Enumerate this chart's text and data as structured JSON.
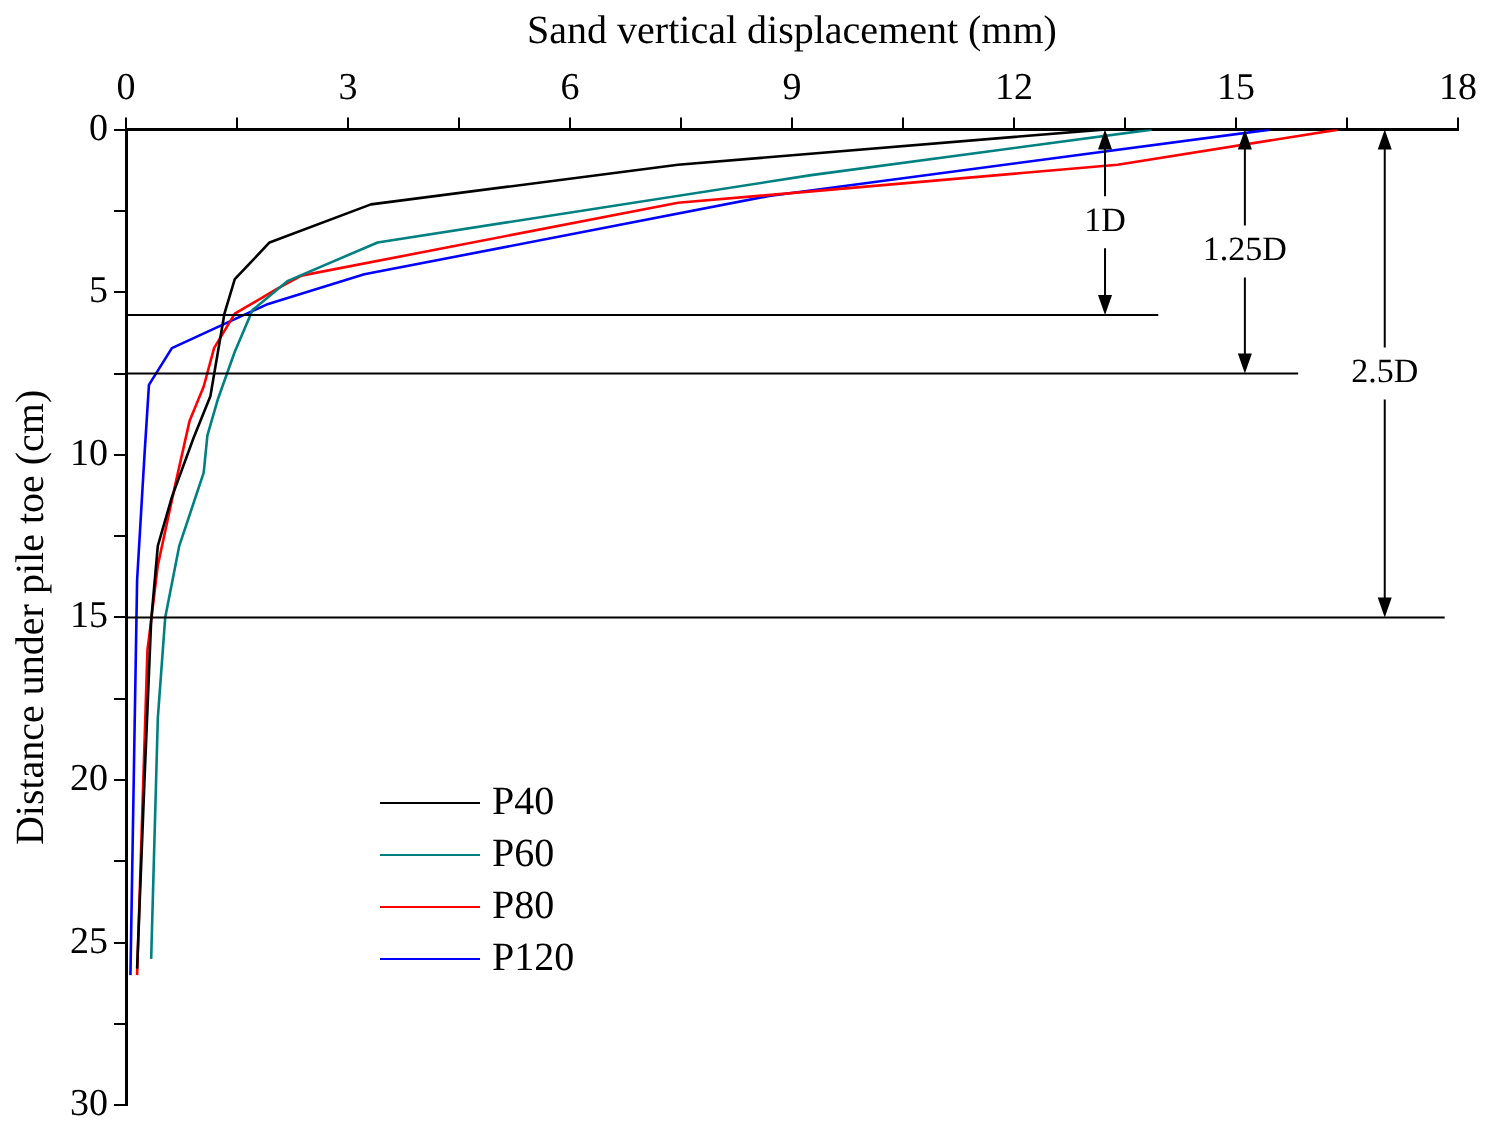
{
  "chart_data": {
    "type": "line",
    "xlabel": "Sand vertical displacement (mm)",
    "ylabel": "Distance under pile toe (cm)",
    "xlim": [
      0,
      18
    ],
    "ylim": [
      30,
      0
    ],
    "xticks": [
      0,
      {
        "value": 1.5,
        "label": null
      },
      3,
      {
        "value": 4.5,
        "label": null
      },
      6,
      {
        "value": 7.5,
        "label": null
      },
      9,
      {
        "value": 10.5,
        "label": null
      },
      12,
      {
        "value": 13.5,
        "label": null
      },
      15,
      {
        "value": 16.5,
        "label": null
      },
      18
    ],
    "yticks": [
      0,
      {
        "value": 2.5,
        "label": null
      },
      5,
      {
        "value": 7.5,
        "label": null
      },
      10,
      {
        "value": 12.5,
        "label": null
      },
      15,
      {
        "value": 17.5,
        "label": null
      },
      20,
      {
        "value": 22.5,
        "label": null
      },
      25,
      {
        "value": 27.5,
        "label": null
      },
      30
    ],
    "grid": false,
    "legend": "bottom left",
    "series": [
      {
        "name": "P40",
        "color": "#000000",
        "x": [
          13.2,
          7.46,
          3.31,
          1.94,
          1.47,
          1.33,
          1.14,
          0.91,
          0.62,
          0.43,
          0.34,
          0.25,
          0.15
        ],
        "values": [
          0,
          1.08,
          2.3,
          3.47,
          4.6,
          5.66,
          8.2,
          9.5,
          11.3,
          12.8,
          15.1,
          20,
          25.8
        ]
      },
      {
        "name": "P60",
        "color": "#008080",
        "x": [
          13.86,
          9.26,
          3.4,
          2.18,
          1.71,
          1.47,
          1.24,
          1.1,
          1.05,
          0.72,
          0.53,
          0.43,
          0.34
        ],
        "values": [
          0,
          1.4,
          3.47,
          4.66,
          5.55,
          6.83,
          8.3,
          9.4,
          10.55,
          12.8,
          15,
          18.1,
          25.5
        ]
      },
      {
        "name": "P80",
        "color": "#ff0000",
        "x": [
          16.38,
          13.4,
          9.26,
          7.46,
          2.37,
          2.04,
          1.47,
          1.19,
          1.05,
          0.86,
          0.67,
          0.43,
          0.34,
          0.29,
          0.15
        ],
        "values": [
          0,
          1.08,
          1.9,
          2.25,
          4.49,
          4.9,
          5.66,
          6.72,
          7.9,
          8.95,
          10.87,
          13.4,
          15.1,
          16,
          26
        ]
      },
      {
        "name": "P120",
        "color": "#0000ff",
        "x": [
          15.46,
          8.69,
          3.22,
          1.9,
          0.62,
          0.31,
          0.25,
          0.15,
          0.06
        ],
        "values": [
          0,
          2.04,
          4.45,
          5.38,
          6.72,
          7.85,
          10,
          13.85,
          26
        ]
      }
    ],
    "ref_lines": [
      {
        "axis": "y",
        "value": 5.7,
        "label": "1D"
      },
      {
        "axis": "y",
        "value": 7.5,
        "label": "1.25D"
      },
      {
        "axis": "y",
        "value": 15,
        "label": "2.5D"
      }
    ]
  }
}
